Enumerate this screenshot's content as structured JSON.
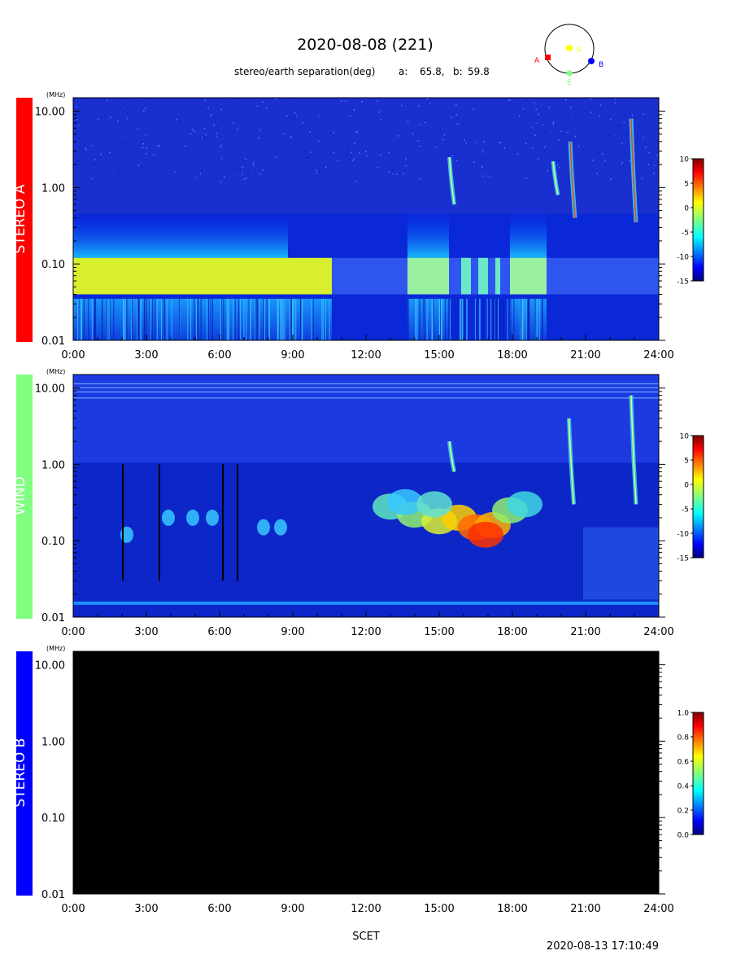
{
  "title": "2020-08-08 (221)",
  "separation": {
    "label": "stereo/earth separation(deg)",
    "a_label": "a:",
    "a_value": "65.8,",
    "b_label": "b:",
    "b_value": "59.8"
  },
  "orbit": {
    "markers": [
      {
        "label": "A",
        "color": "#ff0000"
      },
      {
        "label": "S",
        "color": "#ffff00"
      },
      {
        "label": "B",
        "color": "#0000ff"
      },
      {
        "label": "E",
        "color": "#80ff80"
      }
    ]
  },
  "footer": {
    "xlabel": "SCET",
    "timestamp": "2020-08-13 17:10:49"
  },
  "chart_data": [
    {
      "type": "heatmap",
      "name": "STEREO A",
      "band_color": "#ff0000",
      "yunit": "(MHz)",
      "y_ticks": [
        "10.00",
        "1.00",
        "0.10",
        "0.01"
      ],
      "x_ticks": [
        "0:00",
        "3:00",
        "6:00",
        "9:00",
        "12:00",
        "15:00",
        "18:00",
        "21:00",
        "24:00"
      ],
      "colorbar": {
        "ticks": [
          "10",
          "5",
          "0",
          "-5",
          "-10",
          "-15"
        ],
        "range": [
          -15,
          10
        ]
      },
      "no_data": false,
      "bursts": [
        {
          "t": 15.45,
          "f_top": 2.5,
          "f_bot": 0.6
        },
        {
          "t": 19.7,
          "f_top": 2.2,
          "f_bot": 0.8
        },
        {
          "t": 20.4,
          "f_top": 4.0,
          "f_bot": 0.4
        },
        {
          "t": 22.9,
          "f_top": 8.0,
          "f_bot": 0.35
        }
      ]
    },
    {
      "type": "heatmap",
      "name": "WIND",
      "band_color": "#80ff80",
      "yunit": "(MHz)",
      "y_ticks": [
        "10.00",
        "1.00",
        "0.10",
        "0.01"
      ],
      "x_ticks": [
        "0:00",
        "3:00",
        "6:00",
        "9:00",
        "12:00",
        "15:00",
        "18:00",
        "21:00",
        "24:00"
      ],
      "colorbar": {
        "ticks": [
          "10",
          "5",
          "0",
          "-5",
          "-10",
          "-15"
        ],
        "range": [
          -15,
          10
        ]
      },
      "no_data": false,
      "bursts": [
        {
          "t": 15.45,
          "f_top": 2.0,
          "f_bot": 0.8
        },
        {
          "t": 20.35,
          "f_top": 4.0,
          "f_bot": 0.3
        },
        {
          "t": 22.9,
          "f_top": 8.0,
          "f_bot": 0.3
        }
      ]
    },
    {
      "type": "heatmap",
      "name": "STEREO B",
      "band_color": "#0000ff",
      "yunit": "(MHz)",
      "y_ticks": [
        "10.00",
        "1.00",
        "0.10",
        "0.01"
      ],
      "x_ticks": [
        "0:00",
        "3:00",
        "6:00",
        "9:00",
        "12:00",
        "15:00",
        "18:00",
        "21:00",
        "24:00"
      ],
      "colorbar": {
        "ticks": [
          "1.0",
          "0.8",
          "0.6",
          "0.4",
          "0.2",
          "0.0"
        ],
        "range": [
          0,
          1
        ]
      },
      "no_data": true,
      "bursts": []
    }
  ]
}
